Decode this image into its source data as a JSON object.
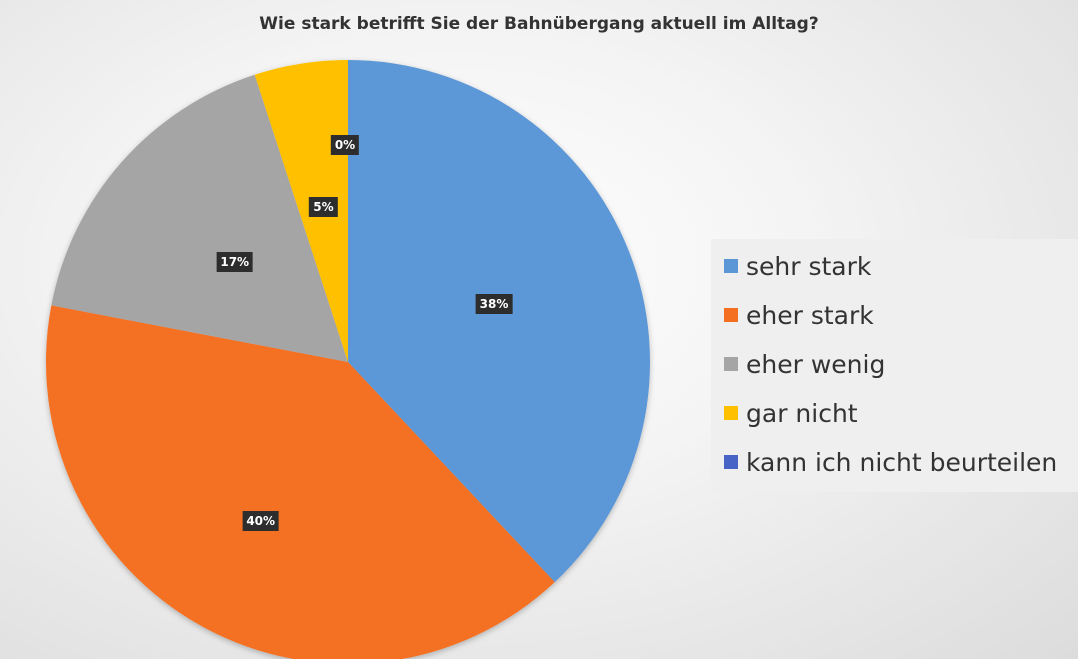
{
  "chart_data": {
    "type": "pie",
    "title": "Wie stark betrifft Sie der Bahnübergang aktuell im Alltag?",
    "legend_position": "right",
    "slices": [
      {
        "label": "sehr stark",
        "value": 38,
        "display": "38%",
        "color": "#5B97D7"
      },
      {
        "label": "eher stark",
        "value": 40,
        "display": "40%",
        "color": "#F47020"
      },
      {
        "label": "eher wenig",
        "value": 17,
        "display": "17%",
        "color": "#A5A5A5"
      },
      {
        "label": "gar nicht",
        "value": 5,
        "display": "5%",
        "color": "#FFC000"
      },
      {
        "label": "kann ich nicht beurteilen",
        "value": 0,
        "display": "0%",
        "color": "#4763C6"
      }
    ]
  }
}
